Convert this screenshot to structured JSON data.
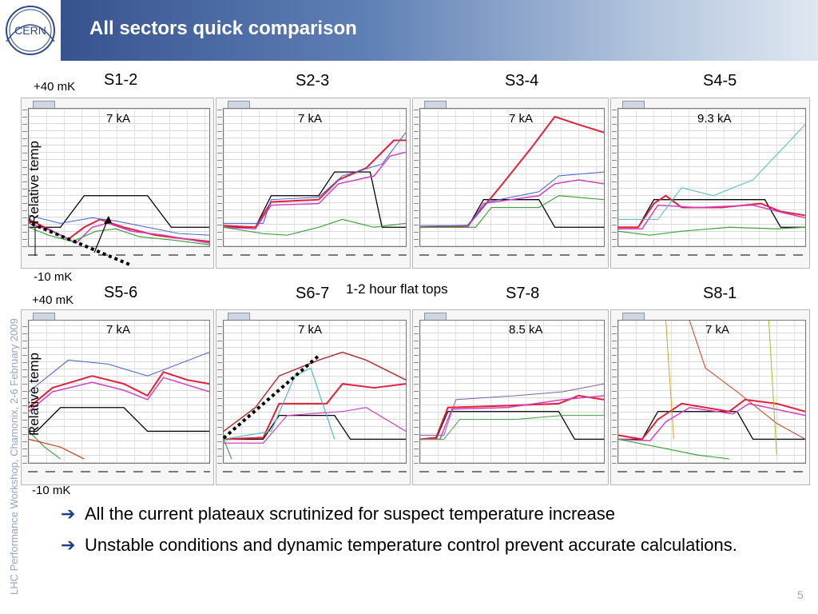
{
  "slide": {
    "title": "All sectors quick comparison",
    "side_text": "LHC Performance Workshop, Chamonix, 2-6 February 2009",
    "page_number": "5",
    "logo_text": "CERN"
  },
  "axis_labels": {
    "top_high": "+40 mK",
    "top_low": "-10 mK",
    "bottom_high": "+40 mK",
    "bottom_low": "-10 mK",
    "relative_temp_top": "Relative temp",
    "relative_temp_bottom": "Relative temp",
    "flat_tops_note": "1-2 hour flat tops"
  },
  "panels": [
    {
      "sector": "S1-2",
      "current": "7 kA"
    },
    {
      "sector": "S2-3",
      "current": "7 kA"
    },
    {
      "sector": "S3-4",
      "current": "7 kA"
    },
    {
      "sector": "S4-5",
      "current": "9.3 kA"
    },
    {
      "sector": "S5-6",
      "current": "7 kA"
    },
    {
      "sector": "S6-7",
      "current": "7 kA"
    },
    {
      "sector": "S7-8",
      "current": "8.5 kA"
    },
    {
      "sector": "S8-1",
      "current": "7 kA"
    }
  ],
  "bullets": [
    "All the current plateaux scrutinized for suspect temperature increase",
    "Unstable conditions and dynamic temperature control prevent accurate calculations."
  ],
  "colors": {
    "header_dark": "#2f4a88",
    "header_light": "#dfe7f1",
    "bullet_arrow": "#1f3e84",
    "trace_main": "#e0203a"
  }
}
